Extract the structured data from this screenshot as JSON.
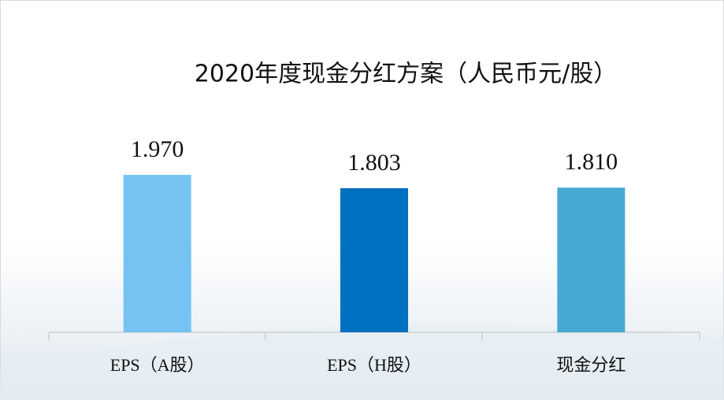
{
  "chart_data": {
    "type": "bar",
    "title": "2020年度现金分红方案（人民币元/股）",
    "categories": [
      "EPS（A股）",
      "EPS（H股）",
      "现金分红"
    ],
    "values": [
      1.97,
      1.803,
      1.81
    ],
    "value_labels": [
      "1.970",
      "1.803",
      "1.810"
    ],
    "colors": [
      "#74c3f2",
      "#0070c0",
      "#46a9d4"
    ]
  }
}
